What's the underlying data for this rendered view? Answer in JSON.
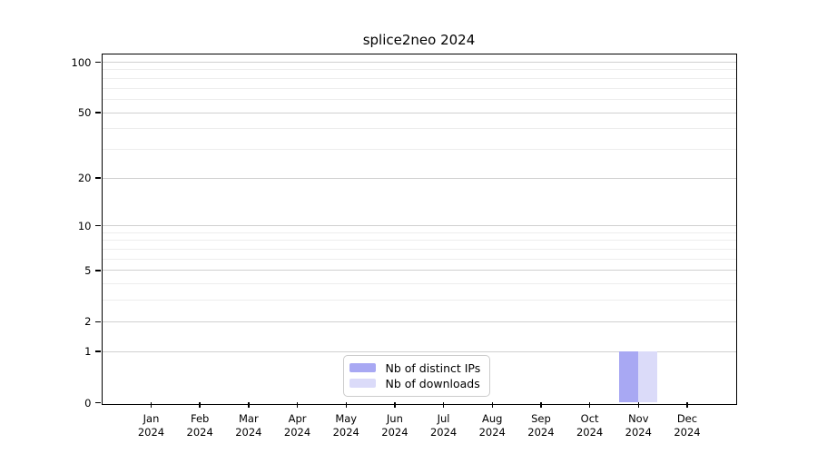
{
  "figure": {
    "background": "#ffffff"
  },
  "chart_data": {
    "type": "bar",
    "title": "splice2neo 2024",
    "x_tick_months": [
      "Jan",
      "Feb",
      "Mar",
      "Apr",
      "May",
      "Jun",
      "Jul",
      "Aug",
      "Sep",
      "Oct",
      "Nov",
      "Dec"
    ],
    "x_tick_year": "2024",
    "categories": [
      "Jan 2024",
      "Feb 2024",
      "Mar 2024",
      "Apr 2024",
      "May 2024",
      "Jun 2024",
      "Jul 2024",
      "Aug 2024",
      "Sep 2024",
      "Oct 2024",
      "Nov 2024",
      "Dec 2024"
    ],
    "series": [
      {
        "name": "Nb of distinct IPs",
        "color": "#a8a8f3",
        "values": [
          0,
          0,
          0,
          0,
          0,
          0,
          0,
          0,
          0,
          0,
          1,
          0
        ]
      },
      {
        "name": "Nb of downloads",
        "color": "#dbdbf9",
        "values": [
          0,
          0,
          0,
          0,
          0,
          0,
          0,
          0,
          0,
          0,
          1,
          0
        ]
      }
    ],
    "yscale": "log1p",
    "ylim": [
      0,
      112
    ],
    "y_axis_ticks": [
      0,
      1,
      2,
      5,
      10,
      20,
      50,
      100
    ],
    "y_minor_gridlines": [
      3,
      4,
      6,
      7,
      8,
      9,
      30,
      40,
      60,
      70,
      80,
      90
    ],
    "grid": true,
    "legend_position": "bottom-center",
    "colors": {
      "major_grid": "#d0d0d0",
      "minor_grid": "#ededed",
      "spine": "#000000",
      "text": "#000000"
    }
  }
}
